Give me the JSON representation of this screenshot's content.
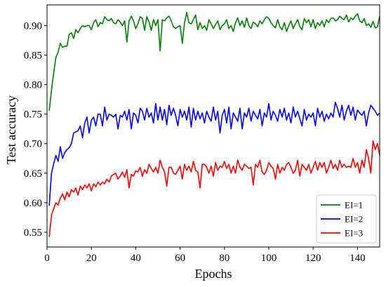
{
  "chart_data": {
    "type": "line",
    "title": "",
    "xlabel": "Epochs",
    "ylabel": "Test accuracy",
    "xlim": [
      0,
      150
    ],
    "ylim": [
      0.525,
      0.935
    ],
    "x_ticks": [
      0,
      20,
      40,
      60,
      80,
      100,
      120,
      140
    ],
    "y_ticks": [
      0.55,
      0.6,
      0.65,
      0.7,
      0.75,
      0.8,
      0.85,
      0.9
    ],
    "x_tick_labels": [
      "0",
      "20",
      "40",
      "60",
      "80",
      "100",
      "120",
      "140"
    ],
    "y_tick_labels": [
      "0.55",
      "0.60",
      "0.65",
      "0.70",
      "0.75",
      "0.80",
      "0.85",
      "0.90"
    ],
    "grid": false,
    "legend_position": "lower-right",
    "x": [
      1,
      2,
      3,
      4,
      5,
      6,
      7,
      8,
      9,
      10,
      11,
      12,
      13,
      14,
      15,
      16,
      17,
      18,
      19,
      20,
      21,
      22,
      23,
      24,
      25,
      26,
      27,
      28,
      29,
      30,
      31,
      32,
      33,
      34,
      35,
      36,
      37,
      38,
      39,
      40,
      41,
      42,
      43,
      44,
      45,
      46,
      47,
      48,
      49,
      50,
      51,
      52,
      53,
      54,
      55,
      56,
      57,
      58,
      59,
      60,
      61,
      62,
      63,
      64,
      65,
      66,
      67,
      68,
      69,
      70,
      71,
      72,
      73,
      74,
      75,
      76,
      77,
      78,
      79,
      80,
      81,
      82,
      83,
      84,
      85,
      86,
      87,
      88,
      89,
      90,
      91,
      92,
      93,
      94,
      95,
      96,
      97,
      98,
      99,
      100,
      101,
      102,
      103,
      104,
      105,
      106,
      107,
      108,
      109,
      110,
      111,
      112,
      113,
      114,
      115,
      116,
      117,
      118,
      119,
      120,
      121,
      122,
      123,
      124,
      125,
      126,
      127,
      128,
      129,
      130,
      131,
      132,
      133,
      134,
      135,
      136,
      137,
      138,
      139,
      140,
      141,
      142,
      143,
      144,
      145,
      146,
      147,
      148,
      149,
      150
    ],
    "series": [
      {
        "name": "EI=1",
        "color": "#008000",
        "values": [
          0.756,
          0.79,
          0.82,
          0.846,
          0.855,
          0.87,
          0.863,
          0.865,
          0.865,
          0.885,
          0.888,
          0.878,
          0.893,
          0.888,
          0.895,
          0.9,
          0.898,
          0.9,
          0.9,
          0.893,
          0.905,
          0.91,
          0.898,
          0.905,
          0.903,
          0.915,
          0.91,
          0.908,
          0.912,
          0.905,
          0.903,
          0.91,
          0.906,
          0.9,
          0.908,
          0.872,
          0.908,
          0.916,
          0.908,
          0.895,
          0.903,
          0.915,
          0.912,
          0.892,
          0.915,
          0.906,
          0.892,
          0.91,
          0.9,
          0.91,
          0.857,
          0.91,
          0.908,
          0.913,
          0.916,
          0.908,
          0.898,
          0.895,
          0.898,
          0.9,
          0.87,
          0.905,
          0.922,
          0.905,
          0.903,
          0.91,
          0.918,
          0.893,
          0.905,
          0.895,
          0.9,
          0.892,
          0.91,
          0.903,
          0.895,
          0.902,
          0.908,
          0.893,
          0.9,
          0.903,
          0.91,
          0.895,
          0.9,
          0.89,
          0.905,
          0.913,
          0.9,
          0.908,
          0.897,
          0.913,
          0.9,
          0.895,
          0.906,
          0.903,
          0.898,
          0.908,
          0.903,
          0.91,
          0.915,
          0.912,
          0.905,
          0.9,
          0.896,
          0.91,
          0.898,
          0.893,
          0.905,
          0.89,
          0.9,
          0.908,
          0.895,
          0.903,
          0.91,
          0.898,
          0.893,
          0.912,
          0.905,
          0.91,
          0.898,
          0.91,
          0.895,
          0.905,
          0.9,
          0.908,
          0.898,
          0.91,
          0.905,
          0.912,
          0.913,
          0.908,
          0.91,
          0.916,
          0.912,
          0.91,
          0.918,
          0.906,
          0.913,
          0.91,
          0.916,
          0.92,
          0.908,
          0.905,
          0.912,
          0.9,
          0.903,
          0.897,
          0.907,
          0.896,
          0.898,
          0.916
        ]
      },
      {
        "name": "EI=2",
        "color": "#0000ff",
        "values": [
          0.595,
          0.65,
          0.666,
          0.68,
          0.67,
          0.695,
          0.675,
          0.685,
          0.69,
          0.693,
          0.7,
          0.718,
          0.72,
          0.722,
          0.73,
          0.71,
          0.735,
          0.745,
          0.718,
          0.74,
          0.745,
          0.73,
          0.75,
          0.75,
          0.73,
          0.762,
          0.74,
          0.75,
          0.748,
          0.745,
          0.75,
          0.725,
          0.748,
          0.745,
          0.755,
          0.74,
          0.758,
          0.725,
          0.752,
          0.748,
          0.735,
          0.76,
          0.755,
          0.74,
          0.76,
          0.745,
          0.752,
          0.735,
          0.768,
          0.74,
          0.762,
          0.74,
          0.758,
          0.732,
          0.765,
          0.748,
          0.76,
          0.748,
          0.73,
          0.758,
          0.745,
          0.755,
          0.74,
          0.762,
          0.728,
          0.76,
          0.74,
          0.755,
          0.742,
          0.752,
          0.735,
          0.755,
          0.745,
          0.738,
          0.762,
          0.74,
          0.755,
          0.718,
          0.748,
          0.758,
          0.735,
          0.762,
          0.725,
          0.752,
          0.745,
          0.738,
          0.76,
          0.725,
          0.752,
          0.745,
          0.76,
          0.738,
          0.755,
          0.748,
          0.742,
          0.758,
          0.73,
          0.752,
          0.745,
          0.768,
          0.74,
          0.755,
          0.748,
          0.738,
          0.758,
          0.745,
          0.76,
          0.74,
          0.752,
          0.735,
          0.762,
          0.745,
          0.755,
          0.742,
          0.73,
          0.758,
          0.74,
          0.75,
          0.745,
          0.752,
          0.73,
          0.76,
          0.745,
          0.755,
          0.738,
          0.75,
          0.742,
          0.752,
          0.745,
          0.77,
          0.76,
          0.745,
          0.765,
          0.74,
          0.755,
          0.765,
          0.748,
          0.762,
          0.74,
          0.757,
          0.752,
          0.748,
          0.755,
          0.73,
          0.752,
          0.765,
          0.76,
          0.755,
          0.748,
          0.752
        ]
      },
      {
        "name": "EI=3",
        "color": "#ff0000",
        "values": [
          0.542,
          0.578,
          0.59,
          0.6,
          0.596,
          0.608,
          0.615,
          0.605,
          0.618,
          0.61,
          0.622,
          0.618,
          0.625,
          0.613,
          0.628,
          0.622,
          0.63,
          0.625,
          0.632,
          0.62,
          0.632,
          0.627,
          0.635,
          0.63,
          0.635,
          0.632,
          0.64,
          0.635,
          0.645,
          0.648,
          0.65,
          0.64,
          0.645,
          0.652,
          0.643,
          0.656,
          0.625,
          0.648,
          0.645,
          0.654,
          0.652,
          0.66,
          0.645,
          0.656,
          0.65,
          0.665,
          0.658,
          0.652,
          0.66,
          0.65,
          0.672,
          0.66,
          0.652,
          0.628,
          0.66,
          0.66,
          0.65,
          0.648,
          0.655,
          0.662,
          0.64,
          0.665,
          0.655,
          0.662,
          0.652,
          0.67,
          0.655,
          0.652,
          0.625,
          0.665,
          0.665,
          0.66,
          0.65,
          0.662,
          0.645,
          0.668,
          0.655,
          0.662,
          0.66,
          0.67,
          0.658,
          0.665,
          0.65,
          0.662,
          0.65,
          0.672,
          0.66,
          0.655,
          0.665,
          0.662,
          0.658,
          0.66,
          0.63,
          0.665,
          0.66,
          0.672,
          0.652,
          0.648,
          0.655,
          0.668,
          0.662,
          0.658,
          0.64,
          0.665,
          0.65,
          0.66,
          0.655,
          0.665,
          0.668,
          0.66,
          0.65,
          0.655,
          0.672,
          0.645,
          0.665,
          0.66,
          0.655,
          0.665,
          0.65,
          0.66,
          0.67,
          0.655,
          0.668,
          0.66,
          0.668,
          0.65,
          0.66,
          0.672,
          0.658,
          0.665,
          0.655,
          0.672,
          0.66,
          0.665,
          0.66,
          0.662,
          0.66,
          0.675,
          0.66,
          0.668,
          0.65,
          0.672,
          0.66,
          0.69,
          0.675,
          0.65,
          0.705,
          0.69,
          0.7,
          0.68
        ]
      }
    ]
  }
}
